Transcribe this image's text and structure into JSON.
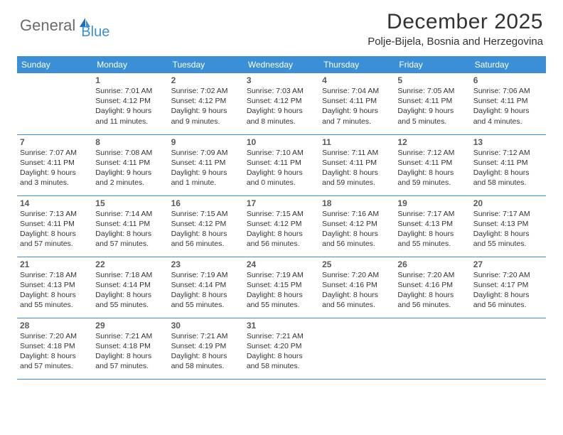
{
  "logo": {
    "text1": "General",
    "text2": "Blue"
  },
  "title": "December 2025",
  "location": "Polje-Bijela, Bosnia and Herzegovina",
  "colors": {
    "accent": "#3b8fd6",
    "text": "#333333",
    "logo_gray": "#6b6b6b",
    "daynum": "#58595b",
    "background": "#ffffff"
  },
  "typography": {
    "title_fontsize": 30,
    "location_fontsize": 15,
    "header_fontsize": 12,
    "daynum_fontsize": 12,
    "detail_fontsize": 10.5
  },
  "day_headers": [
    "Sunday",
    "Monday",
    "Tuesday",
    "Wednesday",
    "Thursday",
    "Friday",
    "Saturday"
  ],
  "weeks": [
    [
      null,
      {
        "n": "1",
        "sr": "7:01 AM",
        "ss": "4:12 PM",
        "dl": "9 hours and 11 minutes."
      },
      {
        "n": "2",
        "sr": "7:02 AM",
        "ss": "4:12 PM",
        "dl": "9 hours and 9 minutes."
      },
      {
        "n": "3",
        "sr": "7:03 AM",
        "ss": "4:12 PM",
        "dl": "9 hours and 8 minutes."
      },
      {
        "n": "4",
        "sr": "7:04 AM",
        "ss": "4:11 PM",
        "dl": "9 hours and 7 minutes."
      },
      {
        "n": "5",
        "sr": "7:05 AM",
        "ss": "4:11 PM",
        "dl": "9 hours and 5 minutes."
      },
      {
        "n": "6",
        "sr": "7:06 AM",
        "ss": "4:11 PM",
        "dl": "9 hours and 4 minutes."
      }
    ],
    [
      {
        "n": "7",
        "sr": "7:07 AM",
        "ss": "4:11 PM",
        "dl": "9 hours and 3 minutes."
      },
      {
        "n": "8",
        "sr": "7:08 AM",
        "ss": "4:11 PM",
        "dl": "9 hours and 2 minutes."
      },
      {
        "n": "9",
        "sr": "7:09 AM",
        "ss": "4:11 PM",
        "dl": "9 hours and 1 minute."
      },
      {
        "n": "10",
        "sr": "7:10 AM",
        "ss": "4:11 PM",
        "dl": "9 hours and 0 minutes."
      },
      {
        "n": "11",
        "sr": "7:11 AM",
        "ss": "4:11 PM",
        "dl": "8 hours and 59 minutes."
      },
      {
        "n": "12",
        "sr": "7:12 AM",
        "ss": "4:11 PM",
        "dl": "8 hours and 59 minutes."
      },
      {
        "n": "13",
        "sr": "7:12 AM",
        "ss": "4:11 PM",
        "dl": "8 hours and 58 minutes."
      }
    ],
    [
      {
        "n": "14",
        "sr": "7:13 AM",
        "ss": "4:11 PM",
        "dl": "8 hours and 57 minutes."
      },
      {
        "n": "15",
        "sr": "7:14 AM",
        "ss": "4:11 PM",
        "dl": "8 hours and 57 minutes."
      },
      {
        "n": "16",
        "sr": "7:15 AM",
        "ss": "4:12 PM",
        "dl": "8 hours and 56 minutes."
      },
      {
        "n": "17",
        "sr": "7:15 AM",
        "ss": "4:12 PM",
        "dl": "8 hours and 56 minutes."
      },
      {
        "n": "18",
        "sr": "7:16 AM",
        "ss": "4:12 PM",
        "dl": "8 hours and 56 minutes."
      },
      {
        "n": "19",
        "sr": "7:17 AM",
        "ss": "4:13 PM",
        "dl": "8 hours and 55 minutes."
      },
      {
        "n": "20",
        "sr": "7:17 AM",
        "ss": "4:13 PM",
        "dl": "8 hours and 55 minutes."
      }
    ],
    [
      {
        "n": "21",
        "sr": "7:18 AM",
        "ss": "4:13 PM",
        "dl": "8 hours and 55 minutes."
      },
      {
        "n": "22",
        "sr": "7:18 AM",
        "ss": "4:14 PM",
        "dl": "8 hours and 55 minutes."
      },
      {
        "n": "23",
        "sr": "7:19 AM",
        "ss": "4:14 PM",
        "dl": "8 hours and 55 minutes."
      },
      {
        "n": "24",
        "sr": "7:19 AM",
        "ss": "4:15 PM",
        "dl": "8 hours and 55 minutes."
      },
      {
        "n": "25",
        "sr": "7:20 AM",
        "ss": "4:16 PM",
        "dl": "8 hours and 56 minutes."
      },
      {
        "n": "26",
        "sr": "7:20 AM",
        "ss": "4:16 PM",
        "dl": "8 hours and 56 minutes."
      },
      {
        "n": "27",
        "sr": "7:20 AM",
        "ss": "4:17 PM",
        "dl": "8 hours and 56 minutes."
      }
    ],
    [
      {
        "n": "28",
        "sr": "7:20 AM",
        "ss": "4:18 PM",
        "dl": "8 hours and 57 minutes."
      },
      {
        "n": "29",
        "sr": "7:21 AM",
        "ss": "4:18 PM",
        "dl": "8 hours and 57 minutes."
      },
      {
        "n": "30",
        "sr": "7:21 AM",
        "ss": "4:19 PM",
        "dl": "8 hours and 58 minutes."
      },
      {
        "n": "31",
        "sr": "7:21 AM",
        "ss": "4:20 PM",
        "dl": "8 hours and 58 minutes."
      },
      null,
      null,
      null
    ]
  ],
  "labels": {
    "sunrise": "Sunrise:",
    "sunset": "Sunset:",
    "daylight": "Daylight:"
  }
}
